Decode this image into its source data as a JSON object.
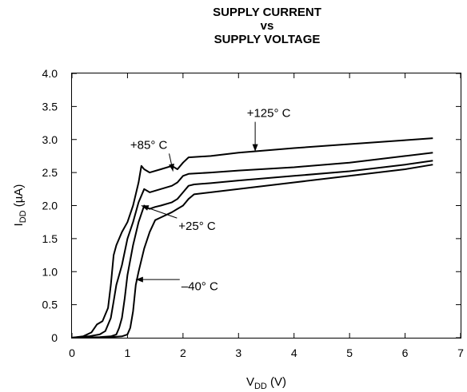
{
  "chart_data": {
    "type": "line",
    "title": [
      "SUPPLY CURRENT",
      "vs",
      "SUPPLY VOLTAGE"
    ],
    "xlabel": {
      "main": "V",
      "sub": "DD",
      "unit": " (V)"
    },
    "ylabel": {
      "main": "I",
      "sub": "DD",
      "unit": " (µA)"
    },
    "xlim": [
      0,
      7
    ],
    "ylim": [
      0,
      4.0
    ],
    "xticks": [
      "0",
      "1",
      "2",
      "3",
      "4",
      "5",
      "6",
      "7"
    ],
    "yticks": [
      "0",
      "0.5",
      "1.0",
      "1.5",
      "2.0",
      "2.5",
      "3.0",
      "3.5",
      "4.0"
    ],
    "grid": false,
    "legend": "none",
    "line_color": "#000000",
    "series": [
      {
        "name": "+125°C",
        "x": [
          0.0,
          0.2,
          0.35,
          0.45,
          0.55,
          0.65,
          0.7,
          0.75,
          0.8,
          0.9,
          1.0,
          1.1,
          1.2,
          1.25,
          1.3,
          1.4,
          1.6,
          1.8,
          1.9,
          2.0,
          2.1,
          2.5,
          3.0,
          4.0,
          5.0,
          6.0,
          6.5
        ],
        "y": [
          0.0,
          0.02,
          0.08,
          0.2,
          0.25,
          0.45,
          0.8,
          1.25,
          1.4,
          1.6,
          1.75,
          2.0,
          2.35,
          2.6,
          2.55,
          2.5,
          2.55,
          2.6,
          2.55,
          2.65,
          2.73,
          2.75,
          2.8,
          2.87,
          2.93,
          2.99,
          3.02
        ]
      },
      {
        "name": "+85°C",
        "x": [
          0.0,
          0.3,
          0.5,
          0.6,
          0.7,
          0.75,
          0.8,
          0.9,
          1.0,
          1.1,
          1.2,
          1.3,
          1.4,
          1.6,
          1.8,
          1.9,
          2.0,
          2.1,
          2.5,
          3.0,
          4.0,
          5.0,
          6.0,
          6.5
        ],
        "y": [
          0.0,
          0.02,
          0.05,
          0.1,
          0.3,
          0.55,
          0.8,
          1.1,
          1.5,
          1.75,
          2.05,
          2.25,
          2.2,
          2.25,
          2.3,
          2.35,
          2.45,
          2.48,
          2.5,
          2.53,
          2.58,
          2.65,
          2.75,
          2.8
        ]
      },
      {
        "name": "+25°C",
        "x": [
          0.0,
          0.5,
          0.7,
          0.8,
          0.85,
          0.9,
          0.95,
          1.0,
          1.1,
          1.2,
          1.3,
          1.35,
          1.4,
          1.5,
          1.6,
          1.8,
          1.9,
          2.0,
          2.1,
          2.2,
          2.5,
          3.0,
          4.0,
          5.0,
          6.0,
          6.5
        ],
        "y": [
          0.0,
          0.01,
          0.02,
          0.05,
          0.15,
          0.3,
          0.6,
          0.95,
          1.4,
          1.75,
          2.0,
          1.97,
          1.95,
          1.98,
          2.0,
          2.05,
          2.1,
          2.2,
          2.3,
          2.32,
          2.34,
          2.38,
          2.45,
          2.52,
          2.62,
          2.68
        ]
      },
      {
        "name": "-40°C",
        "x": [
          0.0,
          0.7,
          0.9,
          1.0,
          1.05,
          1.1,
          1.15,
          1.2,
          1.3,
          1.4,
          1.5,
          1.6,
          1.8,
          1.9,
          2.0,
          2.1,
          2.2,
          2.5,
          3.0,
          4.0,
          5.0,
          6.0,
          6.5
        ],
        "y": [
          0.0,
          0.01,
          0.02,
          0.05,
          0.15,
          0.4,
          0.8,
          1.0,
          1.35,
          1.6,
          1.78,
          1.82,
          1.9,
          1.95,
          2.0,
          2.1,
          2.17,
          2.2,
          2.25,
          2.35,
          2.45,
          2.55,
          2.62
        ]
      }
    ],
    "annotations": [
      {
        "text": "+125° C",
        "series": "+125°C",
        "tx": 3.15,
        "ty": 3.34,
        "ax": 3.3,
        "ay": 2.82
      },
      {
        "text": "+85° C",
        "series": "+85°C",
        "tx": 1.05,
        "ty": 2.86,
        "ax": 1.82,
        "ay": 2.52
      },
      {
        "text": "+25° C",
        "series": "+25°C",
        "tx": 1.92,
        "ty": 1.63,
        "ax": 1.25,
        "ay": 2.0
      },
      {
        "text": "–40° C",
        "series": "-40°C",
        "tx": 1.97,
        "ty": 0.72,
        "ax": 1.15,
        "ay": 0.88
      }
    ]
  }
}
